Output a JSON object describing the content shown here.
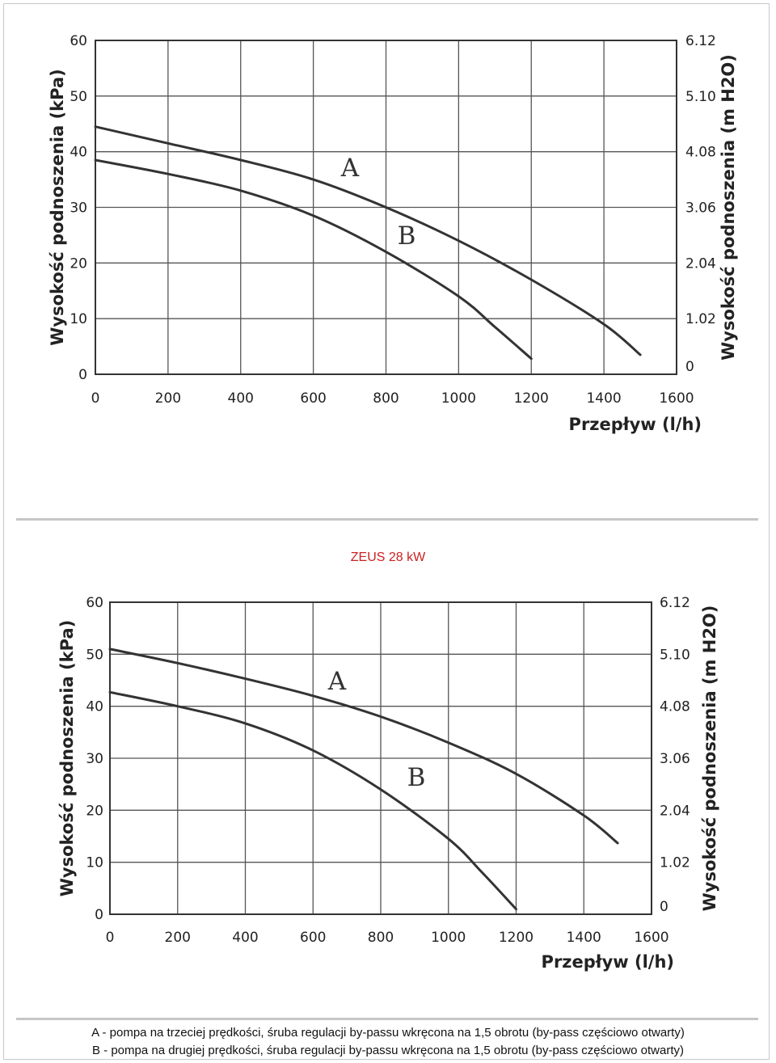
{
  "page_title": "ZEUS 28 kW",
  "captions": [
    "A - pompa na trzeciej prędkości, śruba regulacji by-passu wkręcona na 1,5 obrotu (by-pass częściowo otwarty)",
    "B - pompa na drugiej prędkości, śruba regulacji by-passu wkręcona na 1,5 obrotu (by-pass częściowo otwarty)"
  ],
  "colors": {
    "title": "#cc2222",
    "curve": "#333333",
    "grid": "#555555"
  },
  "chart_data": [
    {
      "type": "line",
      "xlabel": "Przepływ (l/h)",
      "ylabel": "Wysokość podnoszenia (kPa)",
      "ylabel_right": "Wysokość podnoszenia (m H2O)",
      "xlim": [
        0,
        1600
      ],
      "ylim": [
        0,
        60
      ],
      "x_ticks": [
        "0",
        "200",
        "400",
        "600",
        "800",
        "1000",
        "1200",
        "1400",
        "1600"
      ],
      "y_ticks": [
        "0",
        "10",
        "20",
        "30",
        "40",
        "50",
        "60"
      ],
      "y_ticks_right": [
        "0",
        "1.02",
        "2.04",
        "3.06",
        "4.08",
        "5.10",
        "6.12"
      ],
      "grid": true,
      "series": [
        {
          "name": "A",
          "x": [
            0,
            200,
            400,
            600,
            800,
            1000,
            1200,
            1400,
            1500
          ],
          "y": [
            44.5,
            41.5,
            38.5,
            35,
            30,
            24,
            17,
            9,
            3.5
          ]
        },
        {
          "name": "B",
          "x": [
            0,
            200,
            400,
            600,
            800,
            1000,
            1100,
            1200
          ],
          "y": [
            38.5,
            36,
            33,
            28.5,
            22,
            14,
            8.5,
            2.8
          ]
        }
      ]
    },
    {
      "type": "line",
      "xlabel": "Przepływ (l/h)",
      "ylabel": "Wysokość podnoszenia (kPa)",
      "ylabel_right": "Wysokość podnoszenia (m H2O)",
      "xlim": [
        0,
        1600
      ],
      "ylim": [
        0,
        60
      ],
      "x_ticks": [
        "0",
        "200",
        "400",
        "600",
        "800",
        "1000",
        "1200",
        "1400",
        "1600"
      ],
      "y_ticks": [
        "0",
        "10",
        "20",
        "30",
        "40",
        "50",
        "60"
      ],
      "y_ticks_right": [
        "0",
        "1.02",
        "2.04",
        "3.06",
        "4.08",
        "5.10",
        "6.12"
      ],
      "grid": true,
      "series": [
        {
          "name": "A",
          "x": [
            0,
            200,
            400,
            600,
            800,
            1000,
            1200,
            1400,
            1500
          ],
          "y": [
            51,
            48.3,
            45.3,
            42,
            38,
            33,
            27,
            19,
            13.7
          ]
        },
        {
          "name": "B",
          "x": [
            0,
            200,
            400,
            600,
            800,
            1000,
            1100,
            1200
          ],
          "y": [
            42.7,
            40,
            36.7,
            31.5,
            24,
            14.5,
            8,
            1
          ]
        }
      ]
    }
  ]
}
